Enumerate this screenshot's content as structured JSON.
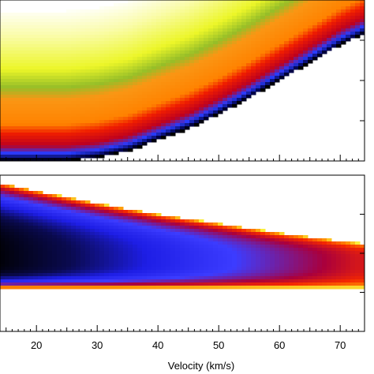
{
  "chart_data": {
    "type": "heatmap",
    "panels": [
      {
        "name": "upper",
        "colormap_order": [
          "white",
          "yellow",
          "green",
          "orange",
          "red",
          "blue",
          "black",
          "white"
        ],
        "xlim": [
          14,
          74
        ],
        "leading_edge": {
          "x": [
            25,
            30,
            35,
            40,
            45,
            50,
            55,
            60,
            65,
            70,
            74
          ],
          "y": [
            0.0,
            0.02,
            0.06,
            0.13,
            0.2,
            0.29,
            0.39,
            0.5,
            0.61,
            0.72,
            0.79
          ]
        }
      },
      {
        "name": "lower",
        "colormap_order": [
          "white",
          "yellow",
          "orange",
          "red",
          "blue",
          "black"
        ],
        "xlim": [
          14,
          74
        ],
        "upper_boundary": {
          "x": [
            14,
            20,
            30,
            40,
            50,
            60,
            70,
            74
          ],
          "y": [
            0.95,
            0.9,
            0.82,
            0.75,
            0.69,
            0.63,
            0.58,
            0.56
          ]
        },
        "lower_boundary": {
          "x": [
            14,
            74
          ],
          "y": [
            0.28,
            0.28
          ]
        },
        "center_y": 0.45
      }
    ],
    "x_ticks": [
      20,
      30,
      40,
      50,
      60,
      70
    ],
    "xlabel": "Velocity (km/s)"
  }
}
